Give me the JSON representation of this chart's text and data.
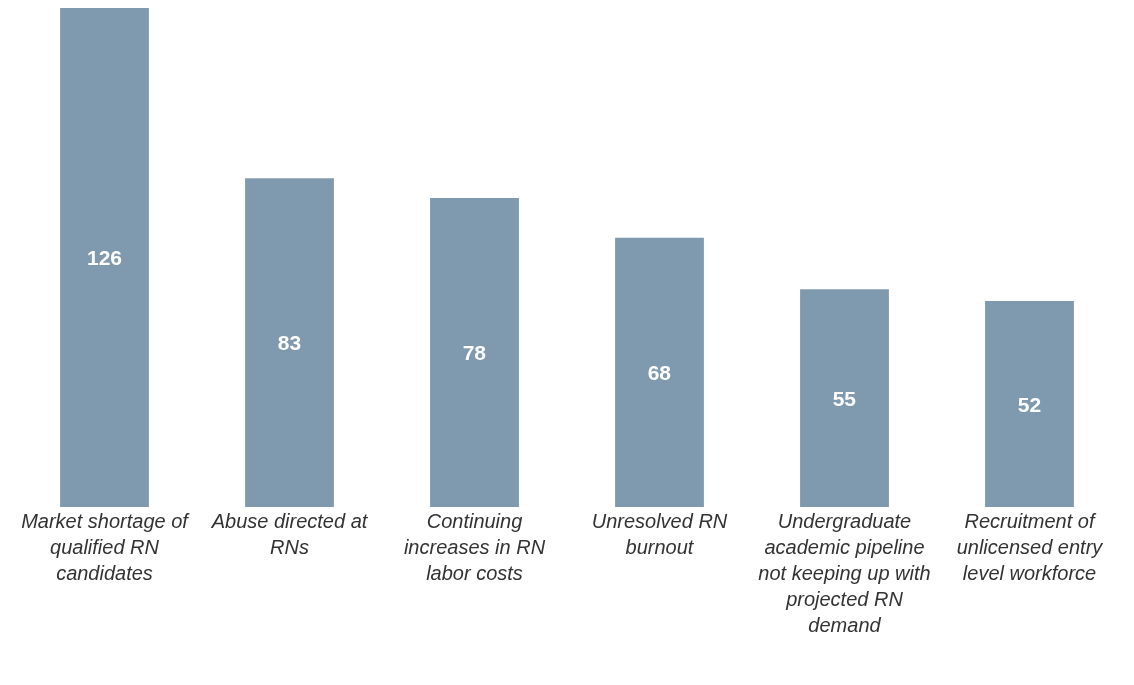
{
  "chart_data": {
    "type": "bar",
    "categories": [
      "Market shortage of qualified RN candidates",
      "Abuse directed at RNs",
      "Continuing increases in RN labor costs",
      "Unresolved RN burnout",
      "Undergraduate academic pipeline not keeping up with projected RN demand",
      "Recruitment of unlicensed entry level workforce"
    ],
    "values": [
      126,
      83,
      78,
      68,
      55,
      52
    ],
    "color": "#7f9aae",
    "data_labels": true,
    "grid": false,
    "legend": false
  }
}
